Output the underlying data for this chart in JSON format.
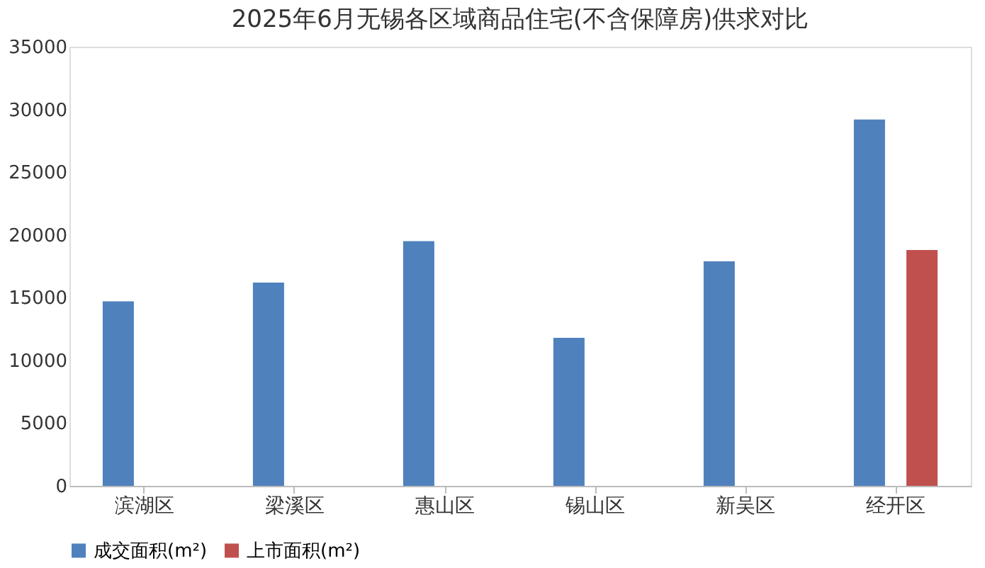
{
  "chart_data": {
    "type": "bar",
    "title": "2025年6月无锡各区域商品住宅(不含保障房)供求对比",
    "categories": [
      "滨湖区",
      "梁溪区",
      "惠山区",
      "锡山区",
      "新吴区",
      "经开区"
    ],
    "series": [
      {
        "name": "成交面积(m²)",
        "color": "#4f81bd",
        "values": [
          14700,
          16200,
          19500,
          11800,
          17900,
          29200
        ]
      },
      {
        "name": "上市面积(m²)",
        "color": "#c0504d",
        "values": [
          null,
          null,
          null,
          null,
          null,
          18800
        ]
      }
    ],
    "ylim": [
      0,
      35000
    ],
    "yticks": [
      0,
      5000,
      10000,
      15000,
      20000,
      25000,
      30000,
      35000
    ],
    "grid": false,
    "legend": "bottom"
  }
}
